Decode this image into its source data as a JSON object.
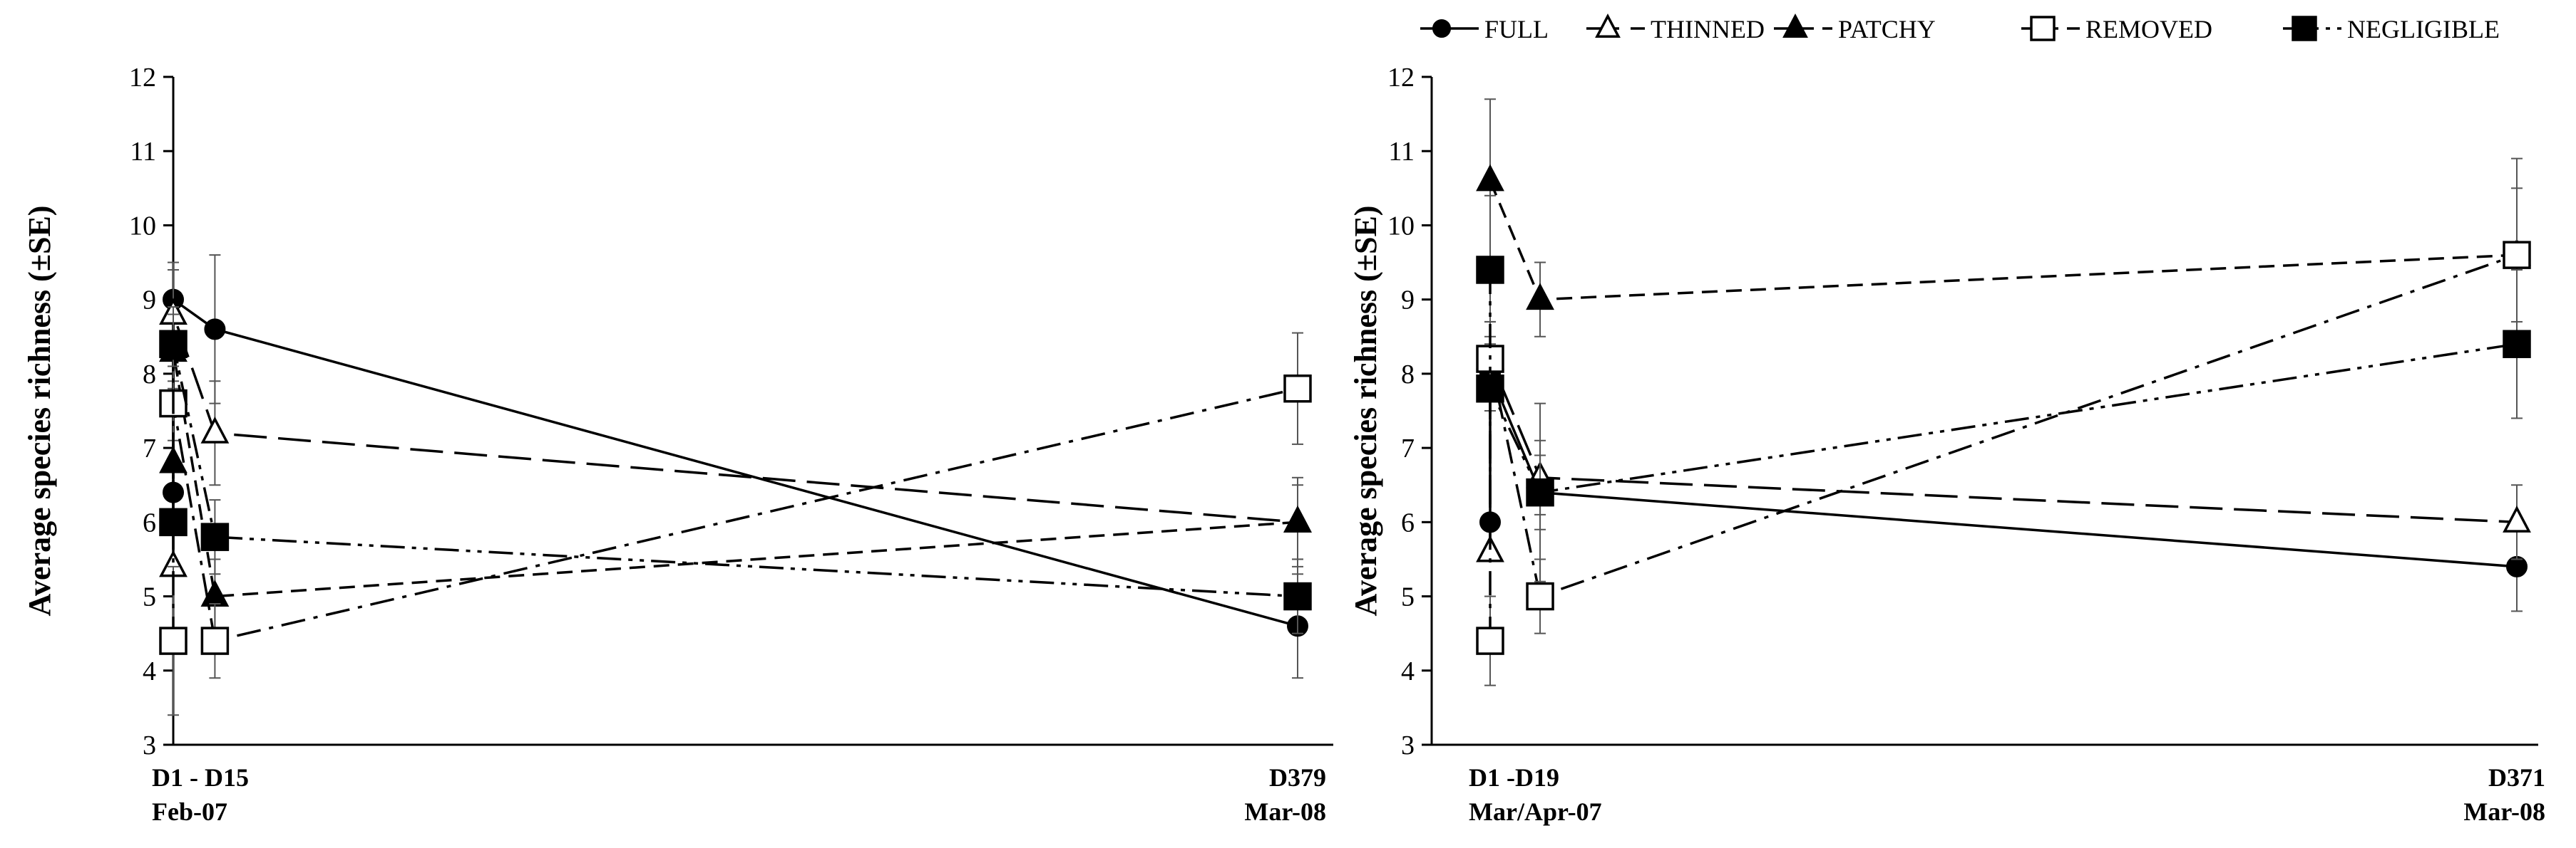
{
  "legend": {
    "items": [
      {
        "series": "FULL",
        "label": "FULL"
      },
      {
        "series": "THINNED",
        "label": "THINNED"
      },
      {
        "series": "PATCHY",
        "label": "PATCHY"
      },
      {
        "series": "REMOVED",
        "label": "REMOVED"
      },
      {
        "series": "NEGLIGIBLE",
        "label": "NEGLIGIBLE"
      }
    ]
  },
  "chart_data": [
    {
      "type": "line",
      "ylabel": "Average species richness (±SE)",
      "ylim": [
        3,
        12
      ],
      "yticks": [
        3,
        4,
        5,
        6,
        7,
        8,
        9,
        10,
        11,
        12
      ],
      "x_categories": [
        {
          "label": "D1  -  D15",
          "sublabel": "Feb-07"
        },
        {
          "label": "D379",
          "sublabel": "Mar-08"
        }
      ],
      "series": [
        {
          "name": "FULL",
          "marker": "circle",
          "dash": "solid",
          "points": [
            {
              "x": 1,
              "y": 6.4,
              "se": 0
            },
            {
              "x": 1,
              "y": 9.0,
              "se": 0.5
            },
            {
              "x": 15,
              "y": 8.6,
              "se": 1.0
            },
            {
              "x": 379,
              "y": 4.6,
              "se": 0.7
            }
          ]
        },
        {
          "name": "THINNED",
          "marker": "triangle-open",
          "dash": "longdash",
          "points": [
            {
              "x": 1,
              "y": 5.4,
              "se": 0
            },
            {
              "x": 1,
              "y": 8.8,
              "se": 0.6
            },
            {
              "x": 15,
              "y": 7.2,
              "se": 0.7
            },
            {
              "x": 379,
              "y": 6.0,
              "se": 0.5
            }
          ]
        },
        {
          "name": "PATCHY",
          "marker": "triangle",
          "dash": "dash",
          "points": [
            {
              "x": 1,
              "y": 6.8,
              "se": 0
            },
            {
              "x": 1,
              "y": 8.3,
              "se": 0.5
            },
            {
              "x": 15,
              "y": 5.0,
              "se": 0.5
            },
            {
              "x": 379,
              "y": 6.0,
              "se": 0.6
            }
          ]
        },
        {
          "name": "REMOVED",
          "marker": "square-open",
          "dash": "dashdot",
          "points": [
            {
              "x": 1,
              "y": 4.4,
              "se": 1.0
            },
            {
              "x": 1,
              "y": 7.6,
              "se": 0.5
            },
            {
              "x": 15,
              "y": 4.4,
              "se": 0.5
            },
            {
              "x": 379,
              "y": 7.8,
              "se": 0.75
            }
          ]
        },
        {
          "name": "NEGLIGIBLE",
          "marker": "square",
          "dash": "dashdotdot",
          "points": [
            {
              "x": 1,
              "y": 6.0,
              "se": 0
            },
            {
              "x": 1,
              "y": 8.4,
              "se": 0.5
            },
            {
              "x": 15,
              "y": 5.8,
              "se": 0.5
            },
            {
              "x": 379,
              "y": 5.0,
              "se": 0.5
            }
          ]
        }
      ]
    },
    {
      "type": "line",
      "ylabel": "Average species richness (±SE)",
      "ylim": [
        3,
        12
      ],
      "yticks": [
        3,
        4,
        5,
        6,
        7,
        8,
        9,
        10,
        11,
        12
      ],
      "x_categories": [
        {
          "label": "D1 -D19",
          "sublabel": "Mar/Apr-07"
        },
        {
          "label": "D371",
          "sublabel": "Mar-08"
        }
      ],
      "series": [
        {
          "name": "FULL",
          "marker": "circle",
          "dash": "solid",
          "points": [
            {
              "x": 1,
              "y": 6.0,
              "se": 0
            },
            {
              "x": 1,
              "y": 8.0,
              "se": 0.5
            },
            {
              "x": 19,
              "y": 6.4,
              "se": 0.5
            },
            {
              "x": 371,
              "y": 5.4,
              "se": 0.6
            }
          ]
        },
        {
          "name": "THINNED",
          "marker": "triangle-open",
          "dash": "longdash",
          "points": [
            {
              "x": 1,
              "y": 5.6,
              "se": 0
            },
            {
              "x": 1,
              "y": 8.2,
              "se": 0.5
            },
            {
              "x": 19,
              "y": 6.6,
              "se": 0.5
            },
            {
              "x": 371,
              "y": 6.0,
              "se": 0.5
            }
          ]
        },
        {
          "name": "PATCHY",
          "marker": "triangle",
          "dash": "dash",
          "points": [
            {
              "x": 1,
              "y": 10.6,
              "se": 1.1
            },
            {
              "x": 19,
              "y": 9.0,
              "se": 0.5
            },
            {
              "x": 371,
              "y": 9.6,
              "se": 0.9
            }
          ]
        },
        {
          "name": "REMOVED",
          "marker": "square-open",
          "dash": "dashdot",
          "points": [
            {
              "x": 1,
              "y": 4.4,
              "se": 0.6
            },
            {
              "x": 1,
              "y": 8.2,
              "se": 0.5
            },
            {
              "x": 19,
              "y": 5.0,
              "se": 0.5
            },
            {
              "x": 371,
              "y": 9.6,
              "se": 1.3
            }
          ]
        },
        {
          "name": "NEGLIGIBLE",
          "marker": "square",
          "dash": "dashdotdot",
          "points": [
            {
              "x": 1,
              "y": 9.4,
              "se": 1.0
            },
            {
              "x": 1,
              "y": 7.8,
              "se": 0
            },
            {
              "x": 19,
              "y": 6.4,
              "se": 1.2
            },
            {
              "x": 371,
              "y": 8.4,
              "se": 1.0
            }
          ]
        }
      ]
    }
  ]
}
